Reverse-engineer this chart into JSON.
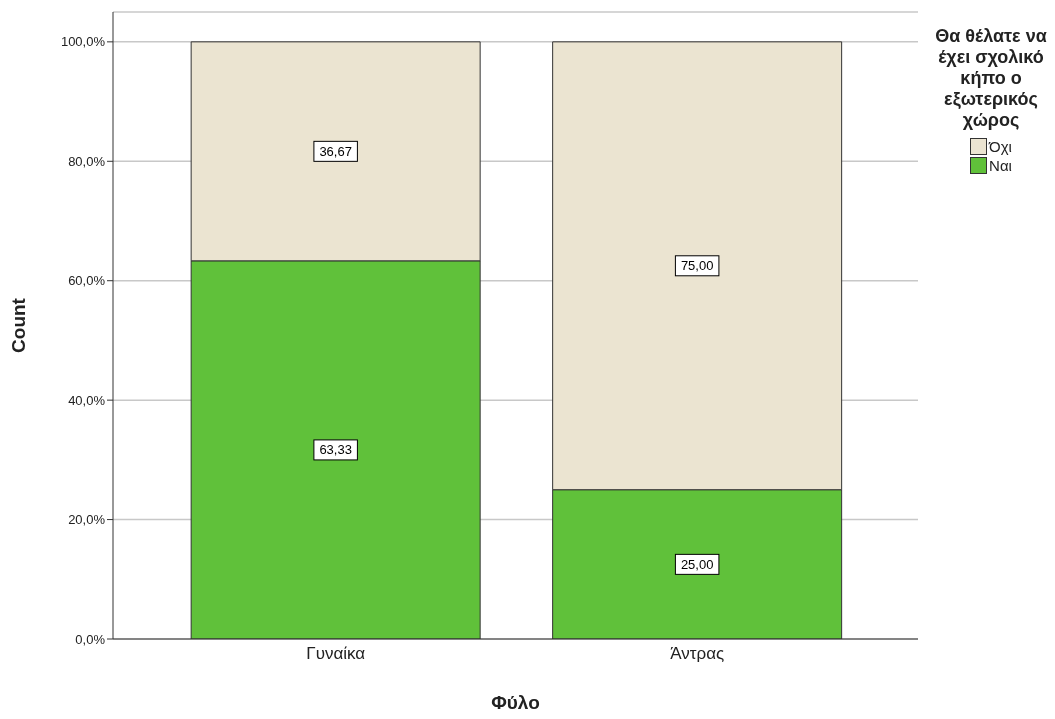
{
  "chart_data": {
    "type": "bar",
    "stacked": true,
    "xlabel": "Φύλο",
    "ylabel": "Count",
    "legend_title": "Θα θέλατε να έχει σχολικό κήπο ο εξωτερικός χώρος",
    "categories": [
      "Γυναίκα",
      "Άντρας"
    ],
    "series": [
      {
        "name": "Ναι",
        "color": "#60c13a",
        "values": [
          63.33,
          25.0
        ],
        "value_labels": [
          "63,33",
          "25,00"
        ]
      },
      {
        "name": "Όχι",
        "color": "#ebe4d1",
        "values": [
          36.67,
          75.0
        ],
        "value_labels": [
          "36,67",
          "75,00"
        ]
      }
    ],
    "ylim": [
      0,
      105
    ],
    "yticks": [
      {
        "value": 0,
        "label": "0,0%"
      },
      {
        "value": 20,
        "label": "20,0%"
      },
      {
        "value": 40,
        "label": "40,0%"
      },
      {
        "value": 60,
        "label": "60,0%"
      },
      {
        "value": 80,
        "label": "80,0%"
      },
      {
        "value": 100,
        "label": "100,0%"
      }
    ],
    "grid": "y",
    "legend": "top right"
  }
}
